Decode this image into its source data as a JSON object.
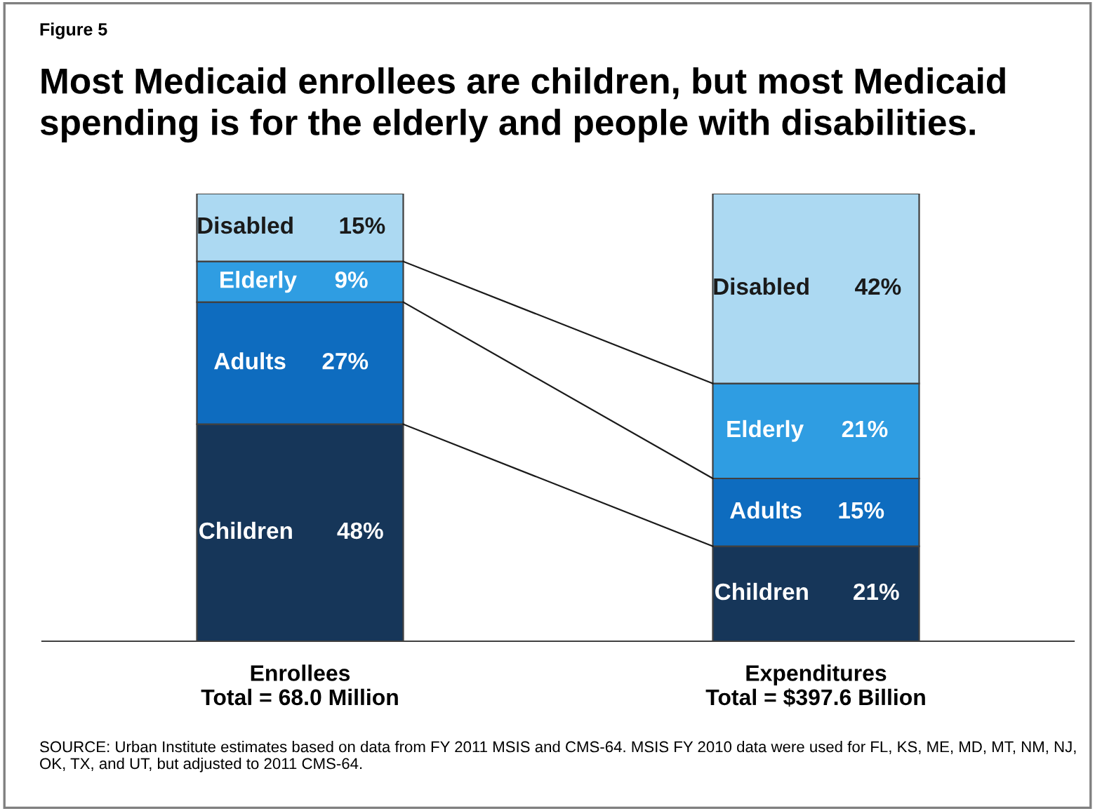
{
  "chart_data": {
    "type": "bar",
    "stacked": true,
    "title": "Most Medicaid enrollees are children, but most Medicaid spending is for the elderly and people with disabilities.",
    "categories": [
      "Enrollees\nTotal = 68.0 Million",
      "Expenditures\nTotal = $397.6 Billion"
    ],
    "series": [
      {
        "name": "Children",
        "color": "#163659",
        "values": [
          48,
          21
        ],
        "value_labels": [
          "48%",
          "21%"
        ]
      },
      {
        "name": "Adults",
        "color": "#0e6cbf",
        "values": [
          27,
          15
        ],
        "value_labels": [
          "27%",
          "15%"
        ]
      },
      {
        "name": "Elderly",
        "color": "#2f9de2",
        "values": [
          9,
          21
        ],
        "value_labels": [
          "9%",
          "21%"
        ]
      },
      {
        "name": "Disabled",
        "color": "#acd9f2",
        "values": [
          15,
          42
        ],
        "value_labels": [
          "15%",
          "42%"
        ]
      }
    ],
    "tick_labels": "x",
    "grid": false,
    "legend": false,
    "annotations": [
      "Figure 5",
      "SOURCE: Urban Institute estimates based on data from FY 2011 MSIS and CMS-64. MSIS FY 2010 data were used for FL, KS, ME, MD, MT, NM, NJ, OK, TX, and UT, but adjusted to 2011 CMS-64."
    ]
  }
}
